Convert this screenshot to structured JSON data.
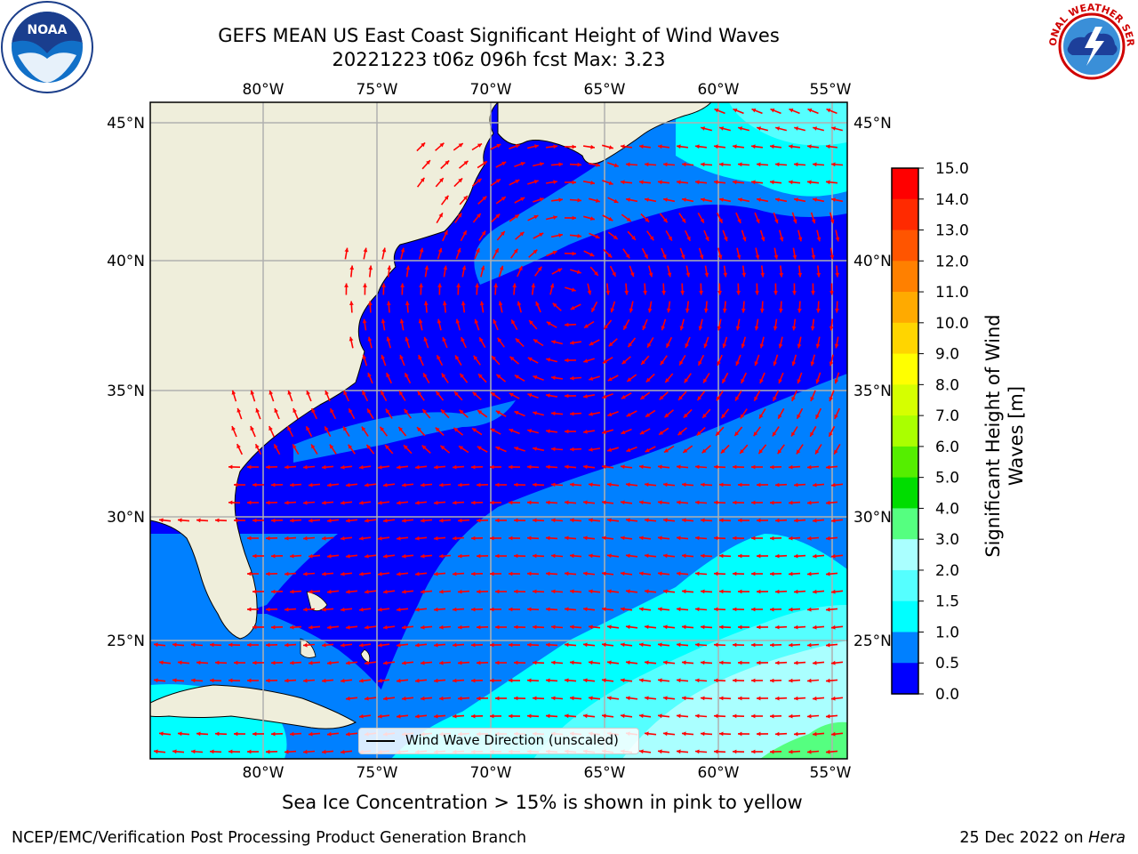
{
  "header": {
    "title_line1": "GEFS MEAN US East Coast Significant Height of Wind Waves",
    "title_line2": "20221223 t06z 096h fcst   Max: 3.23"
  },
  "logos": {
    "left": "NOAA",
    "right": "NATIONAL WEATHER SERVICE"
  },
  "map": {
    "lon_ticks": [
      "80°W",
      "75°W",
      "70°W",
      "65°W",
      "60°W",
      "55°W"
    ],
    "lat_ticks": [
      "45°N",
      "40°N",
      "35°N",
      "30°N",
      "25°N"
    ],
    "legend": "Wind Wave Direction (unscaled)",
    "colors": {
      "land": "#efeedb",
      "gridline": "#b0b0b0",
      "arrow": "#ff0000"
    }
  },
  "colorbar": {
    "title": "Significant Height of Wind Waves [m]",
    "labels": [
      "15.0",
      "14.0",
      "13.0",
      "12.0",
      "11.0",
      "10.0",
      "9.0",
      "8.0",
      "7.0",
      "6.0",
      "5.0",
      "4.0",
      "3.0",
      "2.0",
      "1.5",
      "1.0",
      "0.5",
      "0.0"
    ],
    "bins": [
      {
        "range": "14.0-15.0",
        "color": "#ff0000"
      },
      {
        "range": "13.0-14.0",
        "color": "#ff2a00"
      },
      {
        "range": "12.0-13.0",
        "color": "#ff5500"
      },
      {
        "range": "11.0-12.0",
        "color": "#ff8000"
      },
      {
        "range": "10.0-11.0",
        "color": "#ffaa00"
      },
      {
        "range": "9.0-10.0",
        "color": "#ffd500"
      },
      {
        "range": "8.0-9.0",
        "color": "#ffff00"
      },
      {
        "range": "7.0-8.0",
        "color": "#d5ff00"
      },
      {
        "range": "6.0-7.0",
        "color": "#aaff00"
      },
      {
        "range": "5.0-6.0",
        "color": "#55ee00"
      },
      {
        "range": "4.0-5.0",
        "color": "#00dd00"
      },
      {
        "range": "3.0-4.0",
        "color": "#55ff80"
      },
      {
        "range": "2.0-3.0",
        "color": "#aaffff"
      },
      {
        "range": "1.5-2.0",
        "color": "#55ffff"
      },
      {
        "range": "1.0-1.5",
        "color": "#00ffff"
      },
      {
        "range": "0.5-1.0",
        "color": "#0080ff"
      },
      {
        "range": "0.0-0.5",
        "color": "#0000ff"
      }
    ]
  },
  "subtitle": "Sea Ice Concentration > 15% is shown in pink to yellow",
  "footer": {
    "left": "NCEP/EMC/Verification Post Processing Product Generation Branch",
    "right_date": "25 Dec 2022 on",
    "right_host": "Hera"
  }
}
